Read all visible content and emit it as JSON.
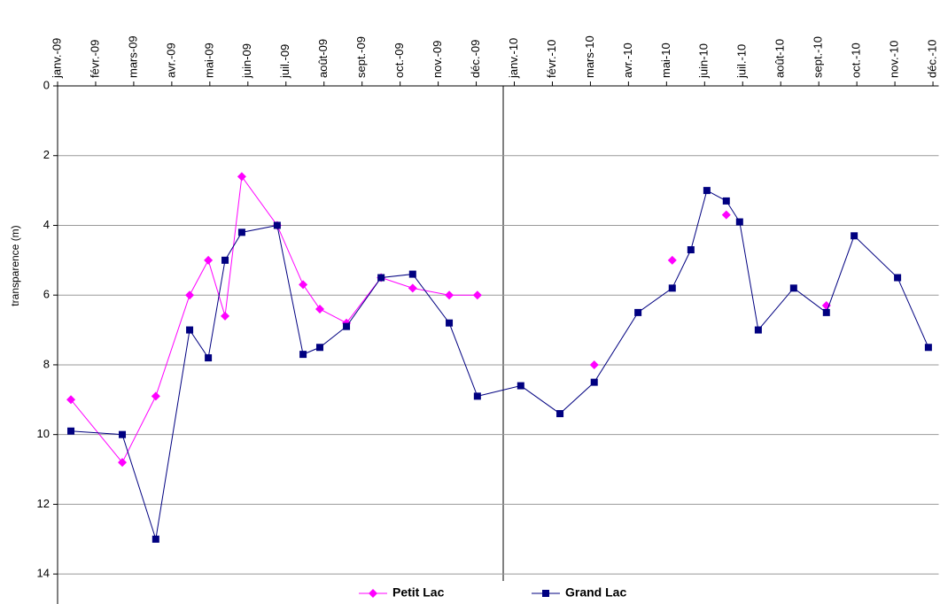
{
  "chart_data": {
    "type": "line",
    "y_label": "transparence  (m)",
    "x": [
      0.35,
      1.7,
      2.58,
      3.47,
      3.96,
      4.4,
      4.84,
      5.77,
      6.45,
      6.89,
      7.59,
      8.5,
      9.33,
      10.29,
      11.03,
      12.17,
      13.2,
      14.1,
      15.25,
      16.15,
      16.64,
      17.06,
      17.57,
      17.92,
      18.41,
      19.34,
      20.2,
      20.93,
      22.07,
      22.88
    ],
    "series": [
      {
        "name": "Petit Lac",
        "color": "#ff00ff",
        "marker": "diamond",
        "values": [
          9.0,
          10.8,
          8.9,
          6.0,
          5.0,
          6.6,
          2.6,
          4.0,
          5.7,
          6.4,
          6.8,
          5.5,
          5.8,
          6.0,
          6.0,
          null,
          null,
          8.0,
          null,
          5.0,
          null,
          null,
          3.7,
          null,
          null,
          null,
          6.3,
          null,
          null,
          null
        ]
      },
      {
        "name": "Grand Lac",
        "color": "#000080",
        "marker": "square",
        "values": [
          9.9,
          10.0,
          13.0,
          7.0,
          7.8,
          5.0,
          4.2,
          4.0,
          7.7,
          7.5,
          6.9,
          5.5,
          5.4,
          6.8,
          8.9,
          8.6,
          9.4,
          8.5,
          6.5,
          5.8,
          4.7,
          3.0,
          3.3,
          3.9,
          7.0,
          5.8,
          6.5,
          4.3,
          5.5,
          7.5
        ]
      }
    ],
    "xlim": [
      0,
      23.15
    ],
    "xticks": [
      {
        "value": 0,
        "label": "janv.-09"
      },
      {
        "value": 1,
        "label": "févr.-09"
      },
      {
        "value": 2,
        "label": "mars-09"
      },
      {
        "value": 3,
        "label": "avr.-09"
      },
      {
        "value": 4,
        "label": "mai-09"
      },
      {
        "value": 5,
        "label": "juin-09"
      },
      {
        "value": 6,
        "label": "juil.-09"
      },
      {
        "value": 7,
        "label": "août-09"
      },
      {
        "value": 8,
        "label": "sept.-09"
      },
      {
        "value": 9,
        "label": "oct.-09"
      },
      {
        "value": 10,
        "label": "nov.-09"
      },
      {
        "value": 11,
        "label": "déc.-09"
      },
      {
        "value": 12,
        "label": "janv.-10"
      },
      {
        "value": 13,
        "label": "févr.-10"
      },
      {
        "value": 14,
        "label": "mars-10"
      },
      {
        "value": 15,
        "label": "avr.-10"
      },
      {
        "value": 16,
        "label": "mai-10"
      },
      {
        "value": 17,
        "label": "juin-10"
      },
      {
        "value": 18,
        "label": "juil.-10"
      },
      {
        "value": 19,
        "label": "août-10"
      },
      {
        "value": 20,
        "label": "sept.-10"
      },
      {
        "value": 21,
        "label": "oct.-10"
      },
      {
        "value": 22,
        "label": "nov.-10"
      },
      {
        "value": 23,
        "label": "déc.-10"
      }
    ],
    "ylim": [
      0,
      14.86
    ],
    "yticks": [
      0,
      2,
      4,
      6,
      8,
      10,
      12,
      14
    ],
    "y_inverted": true,
    "grid": true,
    "legend": "bottom"
  }
}
